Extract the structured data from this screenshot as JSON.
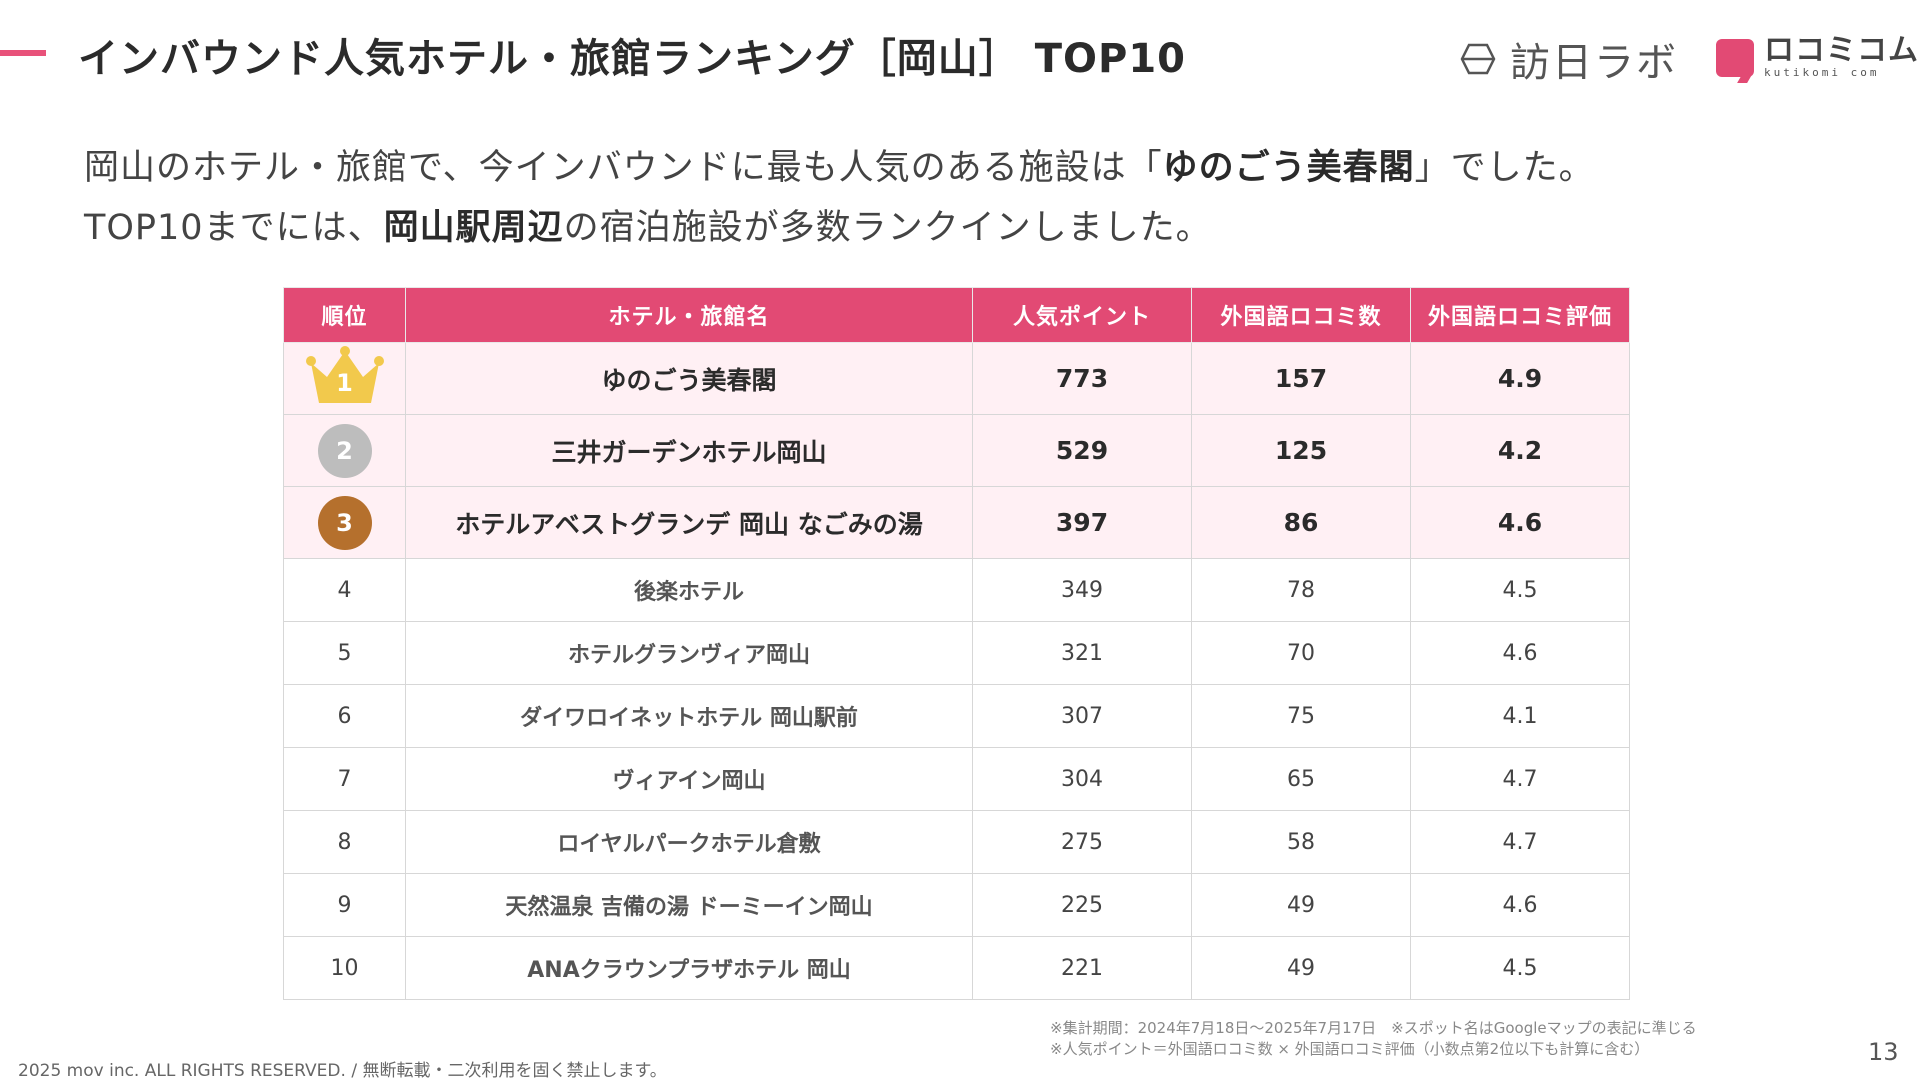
{
  "header": {
    "title": "インバウンド人気ホテル・旅館ランキング［岡山］ TOP10",
    "brand1": "訪日ラボ",
    "brand2_main": "ロコミコム",
    "brand2_sub": "kutikomi com"
  },
  "lead": {
    "line1_a": "岡山のホテル・旅館で、今インバウンドに最も人気のある施設は「",
    "line1_b": "ゆのごう美春閣",
    "line1_c": "」でした。",
    "line2_a": "TOP10までには、",
    "line2_b": "岡山駅周辺",
    "line2_c": "の宿泊施設が多数ランクインしました。"
  },
  "table": {
    "headers": [
      "順位",
      "ホテル・旅館名",
      "人気ポイント",
      "外国語ロコミ数",
      "外国語ロコミ評価"
    ],
    "rows": [
      {
        "rank": "1",
        "name": "ゆのごう美春閣",
        "points": "773",
        "reviews": "157",
        "rating": "4.9"
      },
      {
        "rank": "2",
        "name": "三井ガーデンホテル岡山",
        "points": "529",
        "reviews": "125",
        "rating": "4.2"
      },
      {
        "rank": "3",
        "name": "ホテルアベストグランデ 岡山 なごみの湯",
        "points": "397",
        "reviews": "86",
        "rating": "4.6"
      },
      {
        "rank": "4",
        "name": "後楽ホテル",
        "points": "349",
        "reviews": "78",
        "rating": "4.5"
      },
      {
        "rank": "5",
        "name": "ホテルグランヴィア岡山",
        "points": "321",
        "reviews": "70",
        "rating": "4.6"
      },
      {
        "rank": "6",
        "name": "ダイワロイネットホテル 岡山駅前",
        "points": "307",
        "reviews": "75",
        "rating": "4.1"
      },
      {
        "rank": "7",
        "name": "ヴィアイン岡山",
        "points": "304",
        "reviews": "65",
        "rating": "4.7"
      },
      {
        "rank": "8",
        "name": "ロイヤルパークホテル倉敷",
        "points": "275",
        "reviews": "58",
        "rating": "4.7"
      },
      {
        "rank": "9",
        "name": "天然温泉 吉備の湯 ドーミーイン岡山",
        "points": "225",
        "reviews": "49",
        "rating": "4.6"
      },
      {
        "rank": "10",
        "name": "ANAクラウンプラザホテル 岡山",
        "points": "221",
        "reviews": "49",
        "rating": "4.5"
      }
    ]
  },
  "notes": {
    "line1": "※集計期間：2024年7月18日〜2025年7月17日　※スポット名はGoogleマップの表記に準じる",
    "line2": "※人気ポイント＝外国語ロコミ数 × 外国語ロコミ評価（小数点第2位以下も計算に含む）"
  },
  "footer": {
    "copyright": "2025 mov inc. ALL RIGHTS RESERVED. / 無断転載・二次利用を固く禁止します。",
    "page": "13"
  },
  "colors": {
    "accent": "#e24a74",
    "top_row_bg": "#fff0f4",
    "gold": "#f2c94c",
    "silver": "#bdbdbd",
    "bronze": "#b5702d"
  }
}
